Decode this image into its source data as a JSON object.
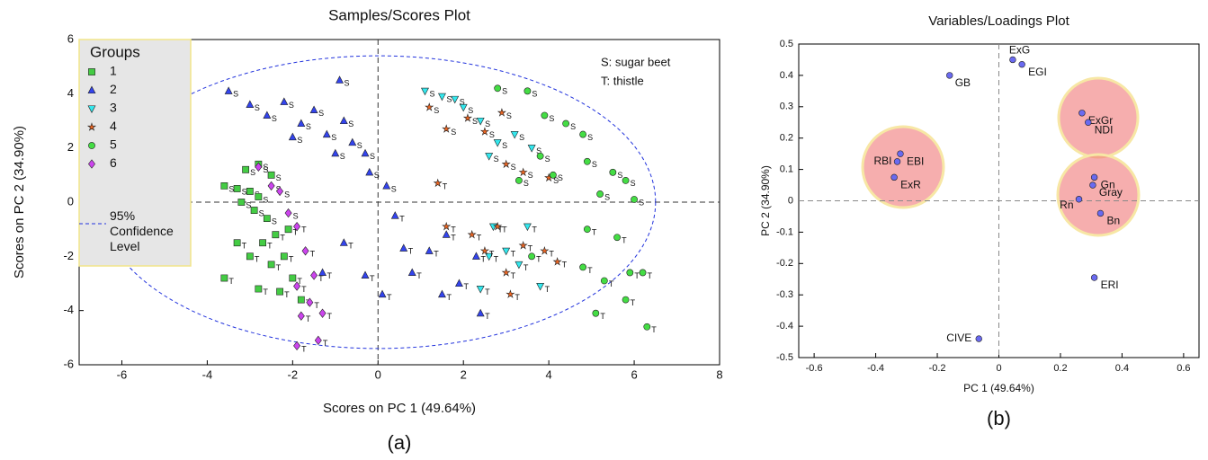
{
  "chart_data": [
    {
      "type": "scatter",
      "title": "Samples/Scores Plot",
      "x_label": "Scores on PC 1 (49.64%)",
      "y_label": "Scores on PC 2 (34.90%)",
      "caption": "(a)",
      "xlim": [
        -7,
        8
      ],
      "xticks": [
        -6,
        -4,
        -2,
        0,
        2,
        4,
        6,
        8
      ],
      "ylim": [
        -6,
        6
      ],
      "yticks": [
        -6,
        -4,
        -2,
        0,
        2,
        4,
        6
      ],
      "legend_title": "Groups",
      "legend": "top-left",
      "annotations": [
        "S: sugar beet",
        "T: thistle"
      ],
      "ellipse": {
        "label": "95% Confidence Level",
        "cx": 0,
        "cy": 0,
        "rx": 6.5,
        "ry": 5.4,
        "color": "#2233dd"
      },
      "series": [
        {
          "name": "1",
          "color": "#44cc44",
          "marker": "square",
          "x": [
            -3.6,
            -3.3,
            -3.0,
            -2.8,
            -3.2,
            -2.9,
            -3.1,
            -2.8,
            -2.5,
            -2.6,
            -2.4,
            -2.7,
            -2.2,
            -2.5,
            -3.0,
            -2.0,
            -2.3,
            -2.8,
            -3.6,
            -1.8,
            -2.1,
            -3.3
          ],
          "values": [
            0.6,
            0.5,
            0.4,
            0.2,
            0.0,
            -0.3,
            1.2,
            1.4,
            1.0,
            -0.6,
            -1.2,
            -1.5,
            -2.0,
            -2.3,
            -2.0,
            -2.8,
            -3.3,
            -3.2,
            -2.8,
            -3.6,
            -1.0,
            -1.5
          ],
          "point_labels": [
            "S",
            "S",
            "S",
            "S",
            "S",
            "S",
            "S",
            "S",
            "S",
            "S",
            "T",
            "T",
            "T",
            "T",
            "T",
            "T",
            "T",
            "T",
            "T",
            "T",
            "T",
            "T"
          ]
        },
        {
          "name": "2",
          "color": "#3344ee",
          "marker": "triangle-up",
          "x": [
            -3.5,
            -3.0,
            -2.6,
            -2.2,
            -1.8,
            -1.5,
            -1.2,
            -0.9,
            -0.8,
            -0.6,
            -0.3,
            -0.2,
            0.2,
            -1.0,
            -2.0,
            0.4,
            0.6,
            -0.8,
            -0.3,
            0.8,
            1.2,
            1.5,
            1.9,
            2.3,
            1.6,
            -1.3,
            0.1,
            2.4
          ],
          "values": [
            4.1,
            3.6,
            3.2,
            3.7,
            2.9,
            3.4,
            2.5,
            4.5,
            3.0,
            2.2,
            1.8,
            1.1,
            0.6,
            1.8,
            2.4,
            -0.5,
            -1.7,
            -1.5,
            -2.7,
            -2.6,
            -1.8,
            -3.4,
            -3.0,
            -2.0,
            -1.2,
            -2.6,
            -3.4,
            -4.1
          ],
          "point_labels": [
            "S",
            "S",
            "S",
            "S",
            "S",
            "S",
            "S",
            "S",
            "S",
            "S",
            "S",
            "S",
            "S",
            "S",
            "S",
            "T",
            "T",
            "T",
            "T",
            "T",
            "T",
            "T",
            "T",
            "T",
            "T",
            "T",
            "T",
            "T"
          ]
        },
        {
          "name": "3",
          "color": "#33e8ee",
          "marker": "triangle-down",
          "x": [
            1.1,
            1.5,
            2.0,
            2.4,
            2.8,
            3.2,
            1.8,
            2.6,
            3.6,
            2.7,
            3.0,
            3.3,
            2.4,
            3.8,
            2.6,
            3.5
          ],
          "values": [
            4.1,
            3.9,
            3.5,
            3.0,
            2.2,
            2.5,
            3.8,
            1.7,
            2.0,
            -0.9,
            -1.8,
            -2.3,
            -3.2,
            -3.1,
            -2.0,
            -0.9
          ],
          "point_labels": [
            "S",
            "S",
            "S",
            "S",
            "S",
            "S",
            "S",
            "S",
            "S",
            "T",
            "T",
            "T",
            "T",
            "T",
            "T",
            "T"
          ]
        },
        {
          "name": "4",
          "color": "#ee6622",
          "marker": "star",
          "x": [
            1.2,
            1.6,
            2.1,
            2.5,
            3.0,
            3.4,
            4.0,
            1.4,
            2.9,
            2.2,
            2.5,
            3.0,
            3.4,
            3.9,
            2.8,
            3.1,
            1.6,
            4.2
          ],
          "values": [
            3.5,
            2.7,
            3.1,
            2.6,
            1.4,
            1.1,
            0.9,
            0.7,
            3.3,
            -1.2,
            -1.8,
            -2.6,
            -1.6,
            -1.8,
            -0.9,
            -3.4,
            -0.9,
            -2.2
          ],
          "point_labels": [
            "S",
            "S",
            "S",
            "S",
            "S",
            "S",
            "S",
            "T",
            "S",
            "T",
            "T",
            "T",
            "T",
            "T",
            "T",
            "T",
            "T",
            "T"
          ]
        },
        {
          "name": "5",
          "color": "#44dd44",
          "marker": "circle",
          "x": [
            2.8,
            3.5,
            3.9,
            4.4,
            4.8,
            3.8,
            4.1,
            4.9,
            5.5,
            5.8,
            6.0,
            5.2,
            3.3,
            4.9,
            5.6,
            4.8,
            5.3,
            5.9,
            6.2,
            5.8,
            5.1,
            6.3,
            3.6
          ],
          "values": [
            4.2,
            4.1,
            3.2,
            2.9,
            2.5,
            1.7,
            1.0,
            1.5,
            1.1,
            0.8,
            0.1,
            0.3,
            0.8,
            -1.0,
            -1.3,
            -2.4,
            -2.9,
            -2.6,
            -2.6,
            -3.6,
            -4.1,
            -4.6,
            -2.0
          ],
          "point_labels": [
            "S",
            "S",
            "S",
            "S",
            "S",
            "S",
            "S",
            "S",
            "S",
            "S",
            "S",
            "S",
            "S",
            "T",
            "T",
            "T",
            "T",
            "T",
            "T",
            "T",
            "T",
            "T",
            "T"
          ]
        },
        {
          "name": "6",
          "color": "#cc44ee",
          "marker": "diamond",
          "x": [
            -2.8,
            -2.5,
            -2.3,
            -2.1,
            -1.9,
            -1.7,
            -1.5,
            -1.9,
            -1.6,
            -1.8,
            -1.3,
            -1.9,
            -1.4
          ],
          "values": [
            1.3,
            0.6,
            0.4,
            -0.4,
            -0.9,
            -1.8,
            -2.7,
            -3.1,
            -3.7,
            -4.2,
            -4.1,
            -5.3,
            -5.1
          ],
          "point_labels": [
            "S",
            "S",
            "S",
            "S",
            "T",
            "T",
            "T",
            "T",
            "T",
            "T",
            "T",
            "T",
            "T"
          ]
        }
      ]
    },
    {
      "type": "scatter",
      "title": "Variables/Loadings Plot",
      "x_label": "PC 1 (49.64%)",
      "y_label": "PC 2 (34.90%)",
      "caption": "(b)",
      "xlim": [
        -0.65,
        0.65
      ],
      "xticks": [
        -0.6,
        -0.4,
        -0.2,
        0,
        0.2,
        0.4,
        0.6
      ],
      "ylim": [
        -0.5,
        0.5
      ],
      "yticks": [
        -0.5,
        -0.4,
        -0.3,
        -0.2,
        -0.1,
        0,
        0.1,
        0.2,
        0.3,
        0.4,
        0.5
      ],
      "color": "#6a6af0",
      "marker": "circle",
      "x": [
        0.045,
        0.075,
        -0.16,
        0.27,
        0.29,
        -0.32,
        -0.33,
        -0.34,
        0.31,
        0.305,
        0.26,
        0.33,
        0.31,
        -0.065
      ],
      "values": [
        0.45,
        0.435,
        0.4,
        0.28,
        0.25,
        0.15,
        0.125,
        0.075,
        0.075,
        0.05,
        0.005,
        -0.04,
        -0.245,
        -0.44
      ],
      "point_labels": [
        "ExG",
        "EGI",
        "GB",
        "ExGr",
        "NDI",
        "EBI",
        "RBI",
        "ExR",
        "Gn",
        "Gray",
        "Rn",
        "Bn",
        "ERI",
        "CIVE"
      ]
    }
  ]
}
